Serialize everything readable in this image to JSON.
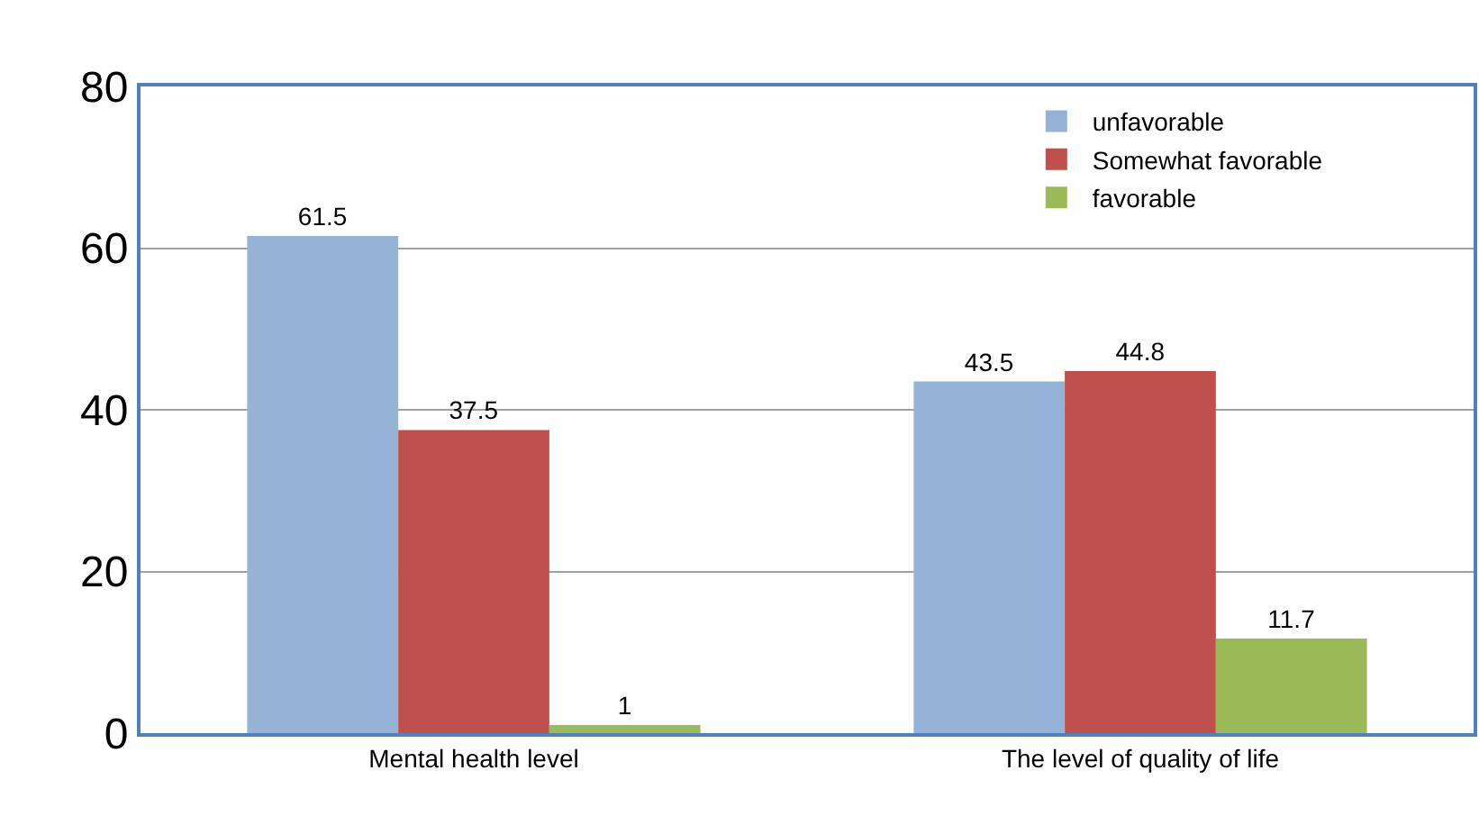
{
  "chart_data": {
    "type": "bar",
    "categories": [
      "Mental health level",
      "The level of quality of life"
    ],
    "series": [
      {
        "name": "unfavorable",
        "color": "#95b3d7",
        "values": [
          61.5,
          43.5
        ]
      },
      {
        "name": "Somewhat favorable",
        "color": "#c0504d",
        "values": [
          37.5,
          44.8
        ]
      },
      {
        "name": "favorable",
        "color": "#9bbb59",
        "values": [
          1,
          11.7
        ]
      }
    ],
    "ylim": [
      0,
      80
    ],
    "yticks": [
      0,
      20,
      40,
      60,
      80
    ],
    "grid": "y",
    "legend": "top right",
    "data_labels": true
  }
}
